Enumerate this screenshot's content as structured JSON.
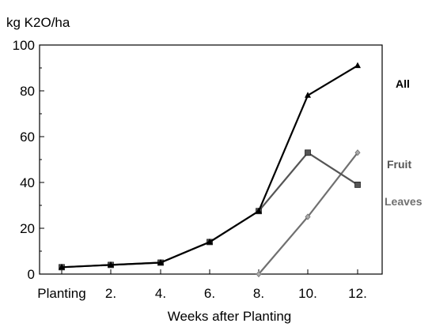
{
  "chart_data": {
    "type": "line",
    "ylabel": "kg K2O/ha",
    "xlabel": "Weeks after Planting",
    "categories": [
      "Planting",
      "2.",
      "4.",
      "6.",
      "8.",
      "10.",
      "12."
    ],
    "ylim": [
      0,
      100
    ],
    "yticks": [
      0,
      20,
      40,
      60,
      80,
      100
    ],
    "grid": false,
    "legend_position": "right",
    "series": [
      {
        "name": "All",
        "color": "#000000",
        "marker": "triangle",
        "values": [
          3,
          4,
          5,
          14,
          27.5,
          78,
          91
        ]
      },
      {
        "name": "Fruit",
        "color": "#555555",
        "marker": "square",
        "values": [
          3,
          4,
          5,
          14,
          27.5,
          53,
          39
        ]
      },
      {
        "name": "Leaves",
        "color": "#707070",
        "marker": "diamond",
        "values": [
          null,
          null,
          null,
          null,
          0,
          25,
          53
        ]
      }
    ]
  }
}
